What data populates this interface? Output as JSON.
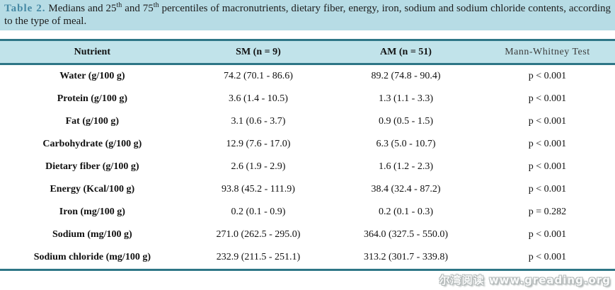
{
  "caption": {
    "label": "Table 2.",
    "seg1": " Medians and 25",
    "sup1": "th",
    "seg2": " and 75",
    "sup2": "th",
    "seg3": " percentiles of macronutrients, dietary fiber, energy, iron, sodium and sodium chloride contents, according to the type of meal."
  },
  "table": {
    "headers": [
      "Nutrient",
      "SM (n = 9)",
      "AM (n = 51)",
      "Mann-Whitney Test"
    ],
    "rows": [
      {
        "nutrient": "Water (g/100 g)",
        "sm": "74.2 (70.1 - 86.6)",
        "am": "89.2 (74.8 - 90.4)",
        "p": "p < 0.001"
      },
      {
        "nutrient": "Protein (g/100 g)",
        "sm": "3.6 (1.4 - 10.5)",
        "am": "1.3 (1.1 - 3.3)",
        "p": "p < 0.001"
      },
      {
        "nutrient": "Fat (g/100 g)",
        "sm": "3.1 (0.6 - 3.7)",
        "am": "0.9 (0.5 - 1.5)",
        "p": "p < 0.001"
      },
      {
        "nutrient": "Carbohydrate (g/100 g)",
        "sm": "12.9 (7.6 - 17.0)",
        "am": "6.3 (5.0 - 10.7)",
        "p": "p < 0.001"
      },
      {
        "nutrient": "Dietary fiber (g/100 g)",
        "sm": "2.6 (1.9 - 2.9)",
        "am": "1.6 (1.2 - 2.3)",
        "p": "p < 0.001"
      },
      {
        "nutrient": "Energy (Kcal/100 g)",
        "sm": "93.8 (45.2 - 111.9)",
        "am": "38.4 (32.4 - 87.2)",
        "p": "p < 0.001"
      },
      {
        "nutrient": "Iron (mg/100 g)",
        "sm": "0.2 (0.1 - 0.9)",
        "am": "0.2 (0.1 - 0.3)",
        "p": "p = 0.282"
      },
      {
        "nutrient": "Sodium (mg/100 g)",
        "sm": "271.0 (262.5 - 295.0)",
        "am": "364.0 (327.5 - 550.0)",
        "p": "p < 0.001"
      },
      {
        "nutrient": "Sodium chloride (mg/100 g)",
        "sm": "232.9 (211.5 - 251.1)",
        "am": "313.2 (301.7 - 339.8)",
        "p": "p < 0.001"
      }
    ]
  },
  "watermark": {
    "text": "尔湾阅读 www.greading.org"
  },
  "colors": {
    "caption_bg": "#b7dce5",
    "header_bg": "#c1e3ea",
    "rule": "#2e7686",
    "caption_label": "#4689a4"
  }
}
